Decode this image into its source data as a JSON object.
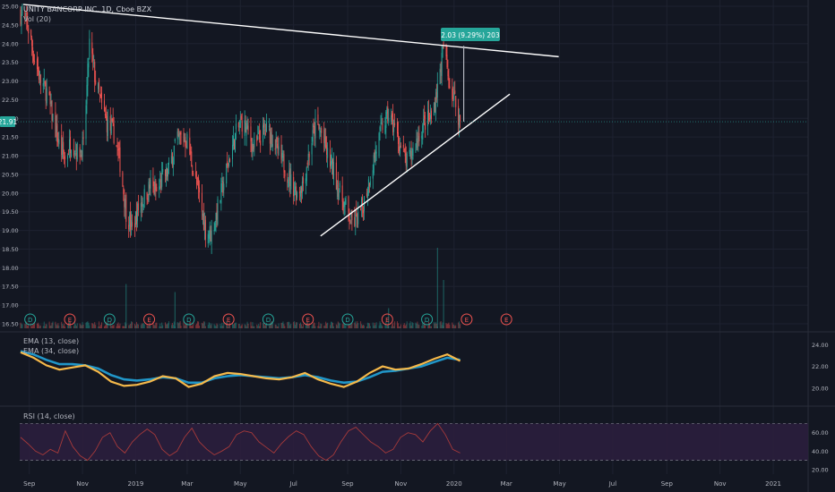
{
  "header": {
    "symbol_title": "UNITY BANCORP INC, 1D, Cboe BZX",
    "volume_label": "Vol (20)"
  },
  "price_tag": "21.91",
  "measure_label": "2.03 (9.29%) 203",
  "colors": {
    "background": "#131722",
    "up": "#26a69a",
    "down": "#ef5350",
    "grid": "#1e2230",
    "axis_text": "#b2b5be",
    "trendline": "#ffffff",
    "ema_fast": "#f6b94a",
    "ema_slow": "#2196c8",
    "rsi_line": "#a63a3a",
    "rsi_band": "#2b1e3d",
    "price_tag_bg": "#26a69a",
    "measure_bg": "#26a69a"
  },
  "x_axis": {
    "labels": [
      "Sep",
      "Nov",
      "2019",
      "Mar",
      "May",
      "Jul",
      "Sep",
      "Nov",
      "2020",
      "Mar",
      "May",
      "Jul",
      "Sep",
      "Nov",
      "2021"
    ]
  },
  "events": {
    "markers": [
      "D",
      "E",
      "D",
      "E",
      "D",
      "E",
      "D",
      "E",
      "D",
      "E",
      "D",
      "E",
      "E"
    ],
    "kinds": [
      "dividend",
      "earnings",
      "dividend",
      "earnings",
      "dividend",
      "earnings",
      "dividend",
      "earnings",
      "dividend",
      "earnings",
      "dividend",
      "earnings",
      "earnings"
    ]
  },
  "chart_data": [
    {
      "type": "candlestick",
      "title": "UNITY BANCORP INC, 1D, Cboe BZX",
      "y_ticks": [
        "25.00",
        "24.50",
        "24.00",
        "23.50",
        "23.00",
        "22.50",
        "22.00",
        "21.50",
        "21.00",
        "20.50",
        "20.00",
        "19.50",
        "19.00",
        "18.50",
        "18.00",
        "17.50",
        "17.00",
        "16.50"
      ],
      "ylim": [
        16.5,
        25.0
      ],
      "last_close": 21.91,
      "price_path": [
        [
          "2018-08-22",
          24.8
        ],
        [
          "2018-08-30",
          24.5
        ],
        [
          "2018-09-07",
          23.6
        ],
        [
          "2018-09-14",
          23.0
        ],
        [
          "2018-09-21",
          22.7
        ],
        [
          "2018-09-28",
          22.0
        ],
        [
          "2018-10-05",
          21.3
        ],
        [
          "2018-10-12",
          20.9
        ],
        [
          "2018-10-19",
          21.4
        ],
        [
          "2018-10-26",
          21.1
        ],
        [
          "2018-11-02",
          21.2
        ],
        [
          "2018-11-09",
          24.0
        ],
        [
          "2018-11-16",
          23.0
        ],
        [
          "2018-11-23",
          22.3
        ],
        [
          "2018-11-30",
          21.8
        ],
        [
          "2018-12-07",
          21.6
        ],
        [
          "2018-12-14",
          20.8
        ],
        [
          "2018-12-21",
          19.5
        ],
        [
          "2018-12-28",
          19.0
        ],
        [
          "2019-01-04",
          19.6
        ],
        [
          "2019-01-11",
          19.9
        ],
        [
          "2019-01-18",
          20.2
        ],
        [
          "2019-01-25",
          20.0
        ],
        [
          "2019-02-01",
          20.4
        ],
        [
          "2019-02-08",
          20.6
        ],
        [
          "2019-02-15",
          21.3
        ],
        [
          "2019-02-22",
          21.5
        ],
        [
          "2019-03-01",
          21.4
        ],
        [
          "2019-03-08",
          20.6
        ],
        [
          "2019-03-15",
          19.9
        ],
        [
          "2019-03-22",
          19.0
        ],
        [
          "2019-03-29",
          18.9
        ],
        [
          "2019-04-05",
          19.6
        ],
        [
          "2019-04-12",
          20.3
        ],
        [
          "2019-04-19",
          21.0
        ],
        [
          "2019-04-26",
          21.6
        ],
        [
          "2019-05-03",
          21.9
        ],
        [
          "2019-05-10",
          21.6
        ],
        [
          "2019-05-17",
          21.2
        ],
        [
          "2019-05-24",
          21.5
        ],
        [
          "2019-05-31",
          21.7
        ],
        [
          "2019-06-07",
          21.5
        ],
        [
          "2019-06-14",
          21.0
        ],
        [
          "2019-06-21",
          20.7
        ],
        [
          "2019-06-28",
          20.3
        ],
        [
          "2019-07-05",
          20.0
        ],
        [
          "2019-07-12",
          20.3
        ],
        [
          "2019-07-19",
          21.1
        ],
        [
          "2019-07-26",
          21.8
        ],
        [
          "2019-08-02",
          21.6
        ],
        [
          "2019-08-09",
          21.0
        ],
        [
          "2019-08-16",
          20.6
        ],
        [
          "2019-08-23",
          20.0
        ],
        [
          "2019-08-30",
          19.6
        ],
        [
          "2019-09-06",
          19.2
        ],
        [
          "2019-09-13",
          19.3
        ],
        [
          "2019-09-20",
          19.8
        ],
        [
          "2019-09-27",
          20.5
        ],
        [
          "2019-10-04",
          21.2
        ],
        [
          "2019-10-11",
          21.8
        ],
        [
          "2019-10-18",
          22.1
        ],
        [
          "2019-10-25",
          21.7
        ],
        [
          "2019-11-01",
          21.2
        ],
        [
          "2019-11-08",
          20.8
        ],
        [
          "2019-11-15",
          21.1
        ],
        [
          "2019-11-22",
          21.6
        ],
        [
          "2019-11-29",
          21.9
        ],
        [
          "2019-12-06",
          22.0
        ],
        [
          "2019-12-13",
          22.8
        ],
        [
          "2019-12-20",
          23.9
        ],
        [
          "2019-12-27",
          22.9
        ],
        [
          "2020-01-03",
          22.4
        ],
        [
          "2020-01-08",
          21.9
        ]
      ],
      "volume_spikes": [
        [
          "2018-12-21",
          0.55
        ],
        [
          "2019-02-15",
          0.45
        ],
        [
          "2019-10-18",
          0.25
        ],
        [
          "2019-12-13",
          1.0
        ],
        [
          "2019-12-20",
          0.6
        ]
      ],
      "trendlines": [
        {
          "from": [
            "2018-08-25",
            25.05
          ],
          "to": [
            "2020-04-30",
            23.65
          ]
        },
        {
          "from": [
            "2019-08-01",
            18.85
          ],
          "to": [
            "2020-03-05",
            22.65
          ]
        }
      ],
      "measurement": {
        "change": 2.03,
        "percent": 9.29,
        "ticks": 203,
        "from": [
          "2020-01-08",
          21.91
        ],
        "to": [
          "2020-01-08",
          23.94
        ]
      }
    },
    {
      "type": "line",
      "series": [
        {
          "name": "EMA (13, close)",
          "values": [
            23.3,
            22.8,
            22.1,
            21.7,
            21.9,
            22.1,
            21.5,
            20.6,
            20.2,
            20.3,
            20.6,
            21.1,
            20.9,
            20.1,
            20.4,
            21.1,
            21.4,
            21.3,
            21.1,
            20.9,
            20.8,
            21.0,
            21.4,
            20.8,
            20.4,
            20.1,
            20.6,
            21.4,
            22.0,
            21.7,
            21.8,
            22.2,
            22.7,
            23.1,
            22.5
          ]
        },
        {
          "name": "EMA (34, close)",
          "values": [
            23.4,
            23.1,
            22.6,
            22.2,
            22.2,
            22.1,
            21.8,
            21.2,
            20.8,
            20.7,
            20.8,
            21.0,
            20.9,
            20.5,
            20.5,
            20.9,
            21.1,
            21.2,
            21.1,
            21.0,
            20.9,
            21.0,
            21.2,
            21.0,
            20.7,
            20.5,
            20.6,
            21.0,
            21.5,
            21.6,
            21.8,
            22.0,
            22.4,
            22.8,
            22.6
          ]
        }
      ],
      "y_ticks": [
        "24.00",
        "22.00",
        "20.00"
      ],
      "ylim": [
        19.0,
        24.6
      ]
    },
    {
      "type": "line",
      "series": [
        {
          "name": "RSI (14, close)",
          "values": [
            55,
            48,
            40,
            36,
            42,
            38,
            62,
            45,
            35,
            30,
            40,
            55,
            60,
            45,
            38,
            50,
            58,
            64,
            58,
            42,
            35,
            40,
            55,
            65,
            50,
            42,
            36,
            40,
            45,
            58,
            62,
            60,
            50,
            44,
            38,
            48,
            56,
            62,
            58,
            45,
            35,
            30,
            36,
            50,
            62,
            66,
            58,
            50,
            45,
            38,
            42,
            55,
            60,
            58,
            50,
            62,
            70,
            58,
            42,
            38
          ]
        }
      ],
      "y_ticks": [
        "60.00",
        "40.00",
        "20.00"
      ],
      "ylim": [
        18,
        85
      ],
      "bands": [
        70,
        30
      ]
    }
  ]
}
